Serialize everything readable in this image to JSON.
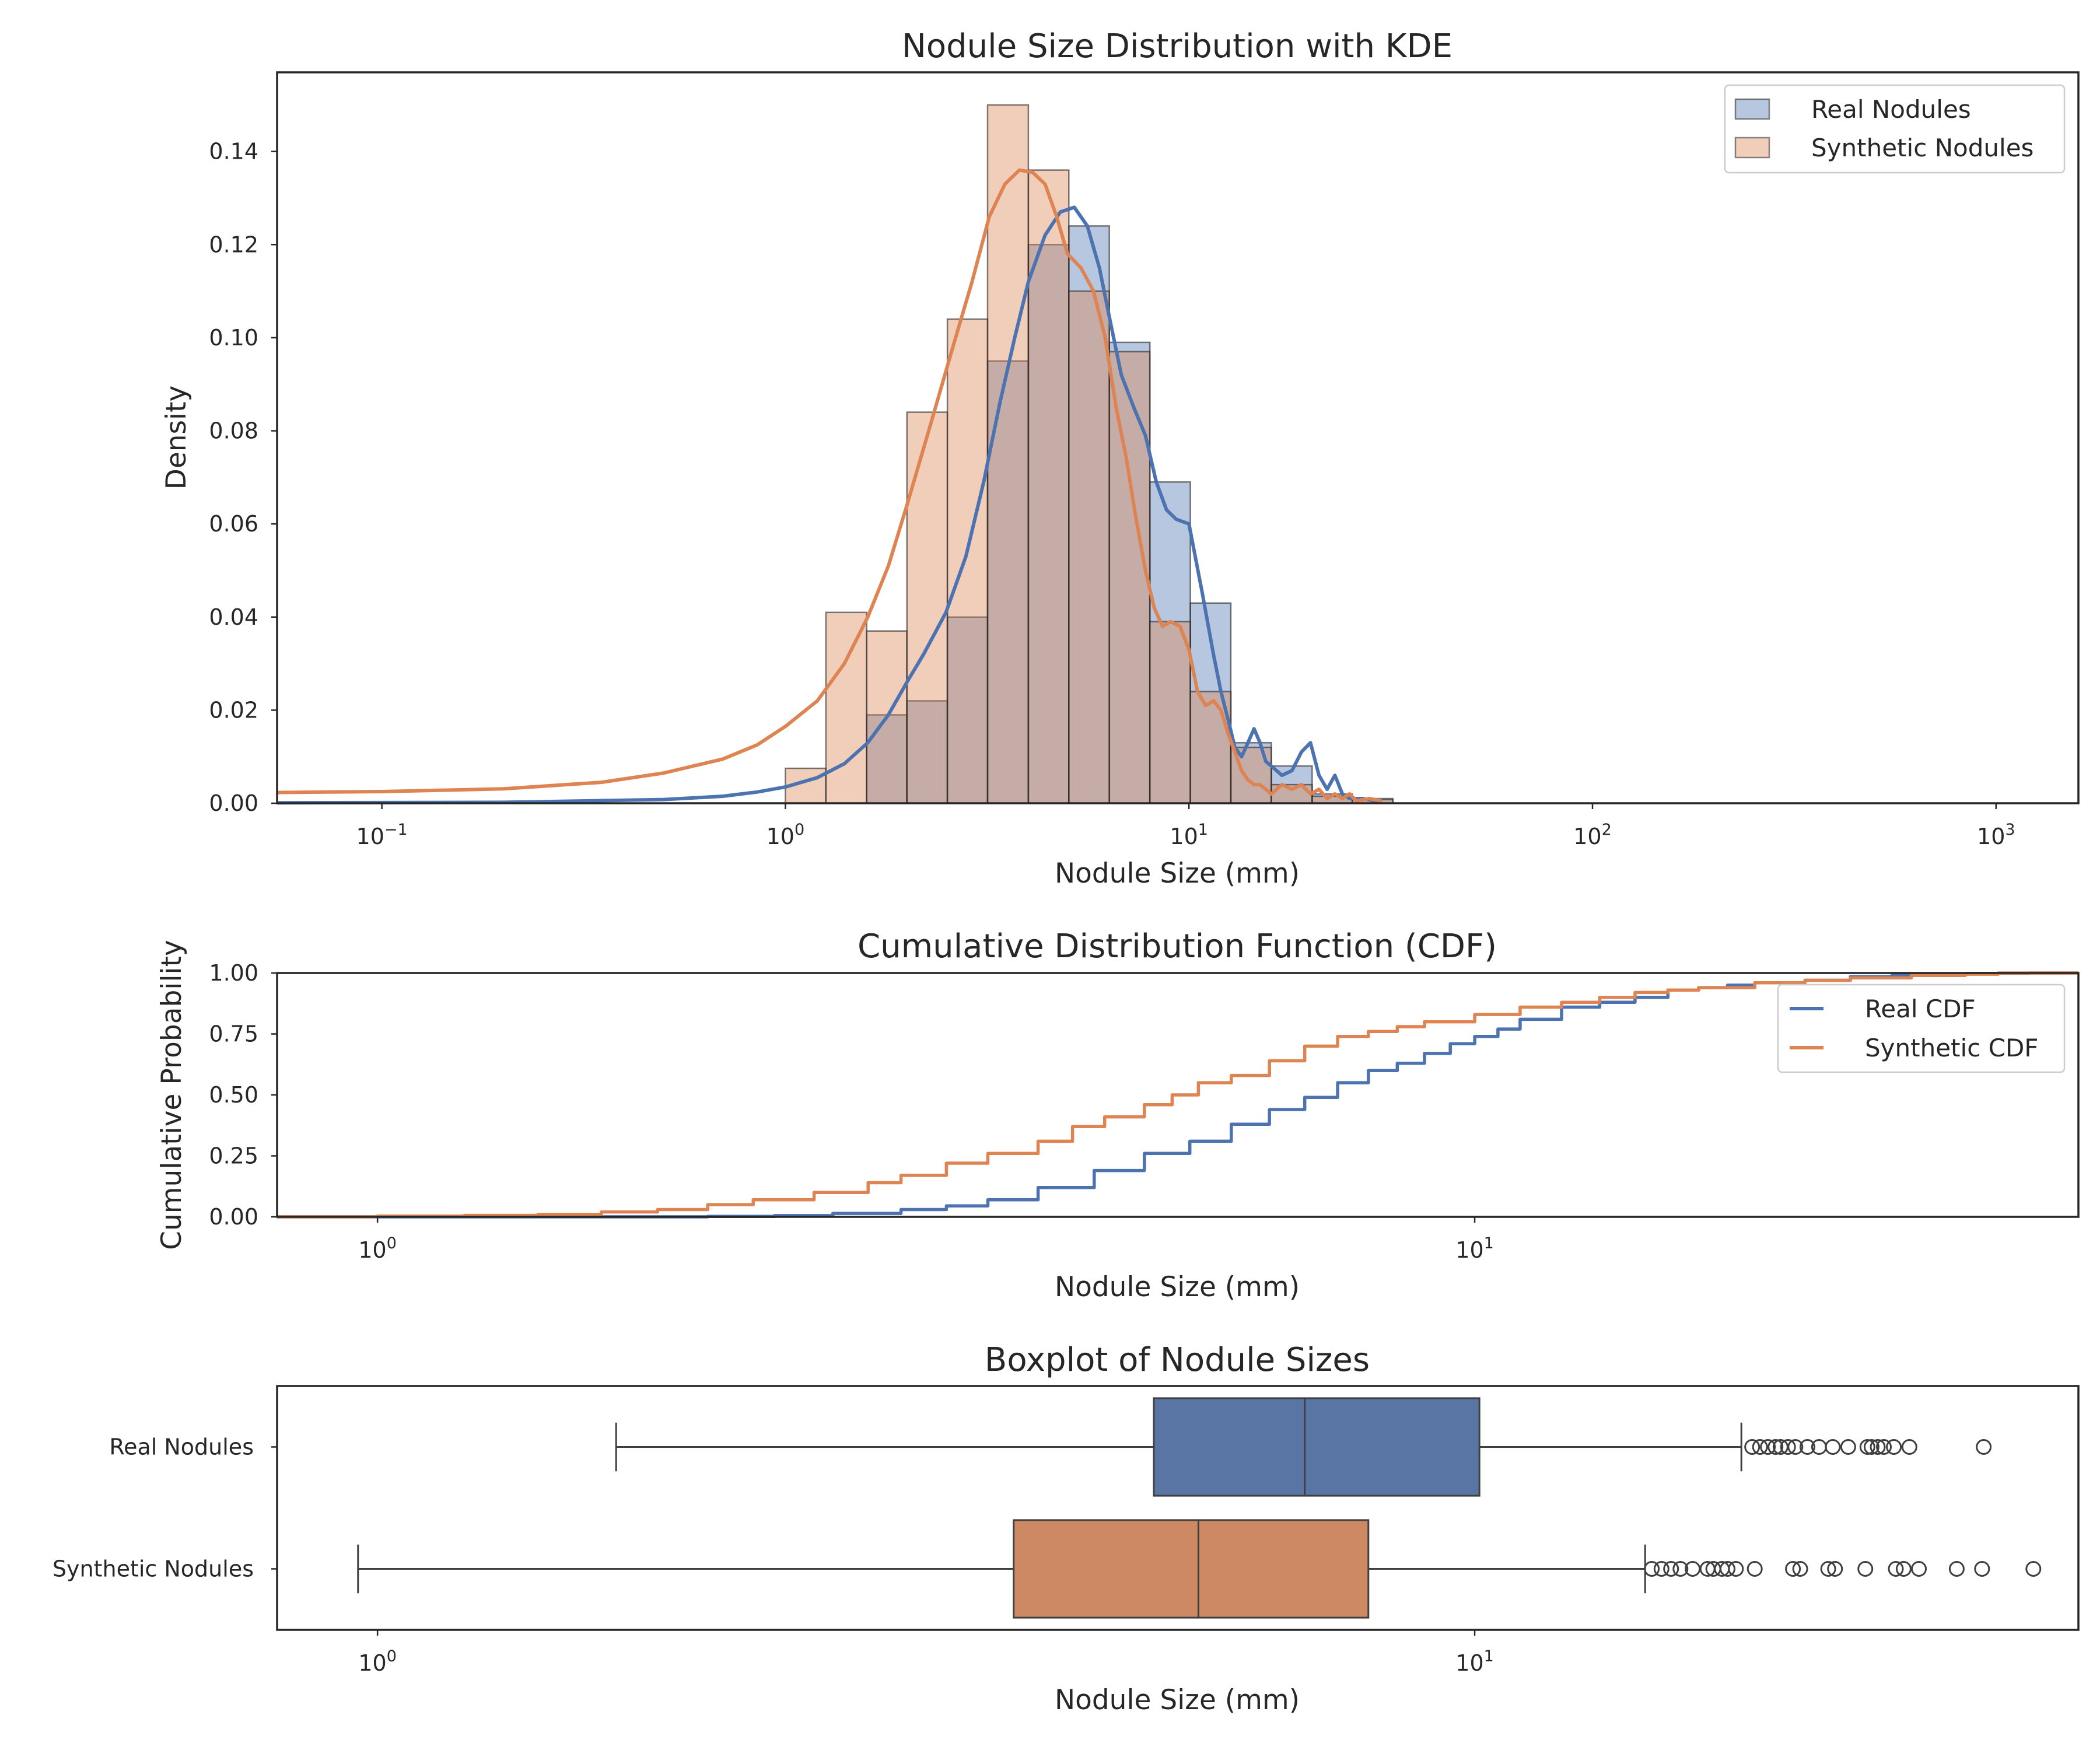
{
  "chart_data": [
    {
      "type": "bar",
      "subtype": "histogram-with-kde",
      "title": "Nodule Size Distribution with KDE",
      "xlabel": "Nodule Size (mm)",
      "ylabel": "Density",
      "xscale": "log",
      "xlim": [
        0.055,
        1600
      ],
      "ylim": [
        0,
        0.157
      ],
      "xticks": [
        0.1,
        1,
        10,
        100,
        1000
      ],
      "xtick_labels": [
        {
          "base": "10",
          "exp": "−1"
        },
        {
          "base": "10",
          "exp": "0"
        },
        {
          "base": "10",
          "exp": "1"
        },
        {
          "base": "10",
          "exp": "2"
        },
        {
          "base": "10",
          "exp": "3"
        }
      ],
      "yticks": [
        0,
        0.02,
        0.04,
        0.06,
        0.08,
        0.1,
        0.12,
        0.14
      ],
      "ytick_labels": [
        "0.00",
        "0.02",
        "0.04",
        "0.06",
        "0.08",
        "0.10",
        "0.12",
        "0.14"
      ],
      "grid": false,
      "legend": "top-right",
      "bin_edges": [
        1.0,
        1.26,
        1.59,
        2.0,
        2.52,
        3.17,
        4.0,
        5.04,
        6.35,
        8.0,
        10.08,
        12.7,
        16.0,
        20.2,
        25.4,
        32.0
      ],
      "series": [
        {
          "name": "Real Nodules",
          "color": "#4c72b0",
          "values": [
            0,
            0,
            0.019,
            0.022,
            0.04,
            0.095,
            0.12,
            0.124,
            0.099,
            0.069,
            0.043,
            0.013,
            0.008,
            0.002,
            0.001
          ],
          "kde": {
            "x": [
              0.055,
              0.2,
              0.5,
              0.7,
              0.85,
              1.0,
              1.2,
              1.4,
              1.6,
              1.8,
              2.0,
              2.2,
              2.5,
              2.8,
              3.1,
              3.4,
              3.7,
              4.0,
              4.4,
              4.8,
              5.2,
              5.6,
              6.0,
              6.4,
              6.8,
              7.3,
              7.8,
              8.3,
              8.8,
              9.3,
              10.0,
              10.8,
              11.5,
              12.0,
              12.5,
              13.0,
              13.5,
              14.0,
              14.5,
              15.0,
              15.5,
              16.0,
              17.0,
              18.0,
              19.0,
              20.0,
              21.0,
              22.0,
              23.0,
              24.0,
              25.0,
              27.0,
              30.0
            ],
            "y": [
              0.0001,
              0.0002,
              0.0008,
              0.0015,
              0.0024,
              0.0035,
              0.0055,
              0.0085,
              0.013,
              0.019,
              0.026,
              0.032,
              0.041,
              0.053,
              0.069,
              0.086,
              0.1,
              0.112,
              0.122,
              0.127,
              0.128,
              0.124,
              0.115,
              0.103,
              0.092,
              0.085,
              0.079,
              0.069,
              0.063,
              0.061,
              0.06,
              0.045,
              0.032,
              0.024,
              0.018,
              0.012,
              0.01,
              0.013,
              0.016,
              0.013,
              0.009,
              0.008,
              0.006,
              0.007,
              0.011,
              0.013,
              0.006,
              0.003,
              0.006,
              0.002,
              0.001,
              0.001,
              0.0002
            ]
          }
        },
        {
          "name": "Synthetic Nodules",
          "color": "#dd8452",
          "values": [
            0.0075,
            0.041,
            0.037,
            0.084,
            0.104,
            0.15,
            0.136,
            0.11,
            0.097,
            0.039,
            0.024,
            0.012,
            0.004,
            0.0015,
            0.0008
          ],
          "kde": {
            "x": [
              0.055,
              0.1,
              0.2,
              0.35,
              0.5,
              0.7,
              0.85,
              1.0,
              1.2,
              1.4,
              1.6,
              1.8,
              2.0,
              2.3,
              2.6,
              2.9,
              3.2,
              3.5,
              3.8,
              4.1,
              4.4,
              4.7,
              5.0,
              5.4,
              5.8,
              6.2,
              6.6,
              7.0,
              7.4,
              7.8,
              8.2,
              8.6,
              9.0,
              9.5,
              10.0,
              10.5,
              11.0,
              11.5,
              12.0,
              12.5,
              13.0,
              13.5,
              14.0,
              14.5,
              15.0,
              16.0,
              17.0,
              18.0,
              19.0,
              20.0,
              21.0,
              22.0,
              23.0,
              24.0,
              25.0,
              26.0,
              28.0,
              30.0
            ],
            "y": [
              0.0023,
              0.0025,
              0.0031,
              0.0045,
              0.0065,
              0.0095,
              0.0125,
              0.0165,
              0.022,
              0.03,
              0.04,
              0.051,
              0.064,
              0.082,
              0.098,
              0.112,
              0.126,
              0.133,
              0.136,
              0.1355,
              0.133,
              0.126,
              0.118,
              0.115,
              0.11,
              0.1,
              0.085,
              0.074,
              0.061,
              0.05,
              0.042,
              0.038,
              0.039,
              0.038,
              0.033,
              0.024,
              0.021,
              0.022,
              0.02,
              0.015,
              0.011,
              0.007,
              0.005,
              0.004,
              0.004,
              0.002,
              0.004,
              0.003,
              0.004,
              0.002,
              0.003,
              0.001,
              0.002,
              0.001,
              0.002,
              0.0005,
              0.001,
              0.0005
            ]
          }
        }
      ]
    },
    {
      "type": "line",
      "subtype": "cdf",
      "title": "Cumulative Distribution Function (CDF)",
      "xlabel": "Nodule Size (mm)",
      "ylabel": "Cumulative Probability",
      "xscale": "log",
      "xlim": [
        0.81,
        35.5
      ],
      "ylim": [
        0,
        1
      ],
      "xticks": [
        1,
        10
      ],
      "xtick_labels": [
        {
          "base": "10",
          "exp": "0"
        },
        {
          "base": "10",
          "exp": "1"
        }
      ],
      "yticks": [
        0,
        0.25,
        0.5,
        0.75,
        1.0
      ],
      "ytick_labels": [
        "0.00",
        "0.25",
        "0.50",
        "0.75",
        "1.00"
      ],
      "grid": false,
      "legend": "upper right",
      "series": [
        {
          "name": "Real CDF",
          "color": "#4c72b0",
          "x": [
            0.81,
            1.0,
            1.5,
            2.0,
            2.3,
            2.6,
            3.0,
            3.3,
            3.6,
            4.0,
            4.5,
            5.0,
            5.5,
            6.0,
            6.5,
            7.0,
            7.5,
            8.0,
            8.5,
            9.0,
            9.5,
            10.0,
            10.5,
            11.0,
            12.0,
            13.0,
            14.0,
            15.0,
            16.0,
            17.0,
            18.0,
            20.0,
            22.0,
            24.0,
            26.0,
            28.0,
            30.0,
            32.0,
            35.5
          ],
          "y": [
            0.0,
            0.0,
            0.0,
            0.002,
            0.005,
            0.014,
            0.03,
            0.045,
            0.07,
            0.12,
            0.19,
            0.26,
            0.31,
            0.38,
            0.44,
            0.49,
            0.55,
            0.6,
            0.63,
            0.67,
            0.71,
            0.74,
            0.77,
            0.81,
            0.86,
            0.88,
            0.9,
            0.93,
            0.94,
            0.95,
            0.96,
            0.97,
            0.985,
            0.99,
            0.995,
            0.998,
            0.999,
            1.0,
            1.0
          ]
        },
        {
          "name": "Synthetic CDF",
          "color": "#dd8452",
          "x": [
            0.81,
            1.0,
            1.2,
            1.4,
            1.6,
            1.8,
            2.0,
            2.2,
            2.5,
            2.8,
            3.0,
            3.3,
            3.6,
            4.0,
            4.3,
            4.6,
            5.0,
            5.3,
            5.6,
            6.0,
            6.5,
            7.0,
            7.5,
            8.0,
            8.5,
            9.0,
            10.0,
            11.0,
            12.0,
            13.0,
            14.0,
            15.0,
            16.0,
            18.0,
            20.0,
            22.0,
            25.0,
            28.0,
            30.0,
            35.5
          ],
          "y": [
            0.0,
            0.003,
            0.006,
            0.01,
            0.02,
            0.03,
            0.05,
            0.07,
            0.1,
            0.14,
            0.17,
            0.22,
            0.26,
            0.31,
            0.37,
            0.41,
            0.46,
            0.5,
            0.55,
            0.58,
            0.64,
            0.7,
            0.74,
            0.76,
            0.78,
            0.8,
            0.83,
            0.86,
            0.88,
            0.9,
            0.92,
            0.93,
            0.94,
            0.96,
            0.97,
            0.98,
            0.99,
            0.995,
            1.0,
            1.0
          ]
        }
      ]
    },
    {
      "type": "boxplot",
      "title": "Boxplot of Nodule Sizes",
      "xlabel": "Nodule Size (mm)",
      "ylabel": "",
      "xscale": "log",
      "xlim": [
        0.81,
        35.5
      ],
      "xticks": [
        1,
        10
      ],
      "xtick_labels": [
        {
          "base": "10",
          "exp": "0"
        },
        {
          "base": "10",
          "exp": "1"
        }
      ],
      "categories": [
        "Real Nodules",
        "Synthetic Nodules"
      ],
      "series": [
        {
          "name": "Real Nodules",
          "color": "#4c72b0",
          "whisker_low": 1.65,
          "q1": 5.1,
          "median": 7.0,
          "q3": 10.1,
          "whisker_high": 17.5,
          "outliers": [
            17.9,
            18.2,
            18.5,
            18.8,
            19.0,
            19.3,
            19.6,
            20.1,
            20.6,
            21.2,
            21.9,
            22.8,
            23.0,
            23.3,
            23.6,
            24.1,
            24.9,
            29.1
          ]
        },
        {
          "name": "Synthetic Nodules",
          "color": "#dd8452",
          "whisker_low": 0.96,
          "q1": 3.8,
          "median": 5.6,
          "q3": 8.0,
          "whisker_high": 14.3,
          "outliers": [
            14.5,
            14.8,
            15.1,
            15.4,
            15.8,
            16.3,
            16.5,
            16.8,
            17.0,
            17.3,
            18.0,
            19.5,
            19.8,
            21.0,
            21.3,
            22.7,
            24.2,
            24.6,
            25.4,
            27.5,
            29.0,
            32.3
          ]
        }
      ]
    }
  ]
}
